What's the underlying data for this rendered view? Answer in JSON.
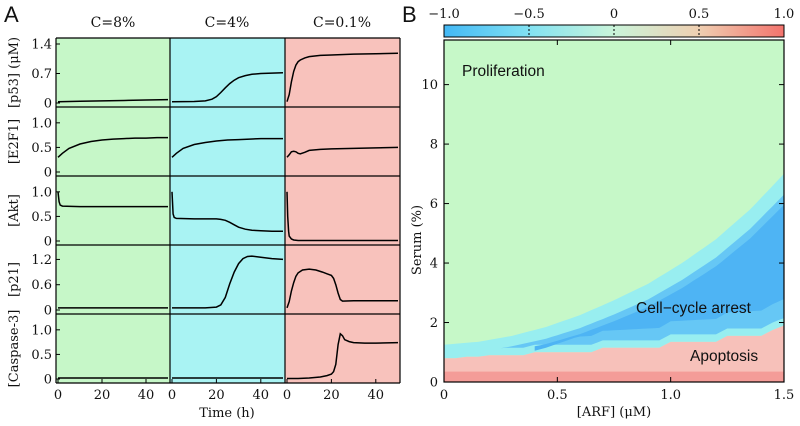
{
  "chart_data": [
    {
      "type": "line",
      "panel_label": "A",
      "column_titles": [
        "C=8%",
        "C=4%",
        "C=0.1%"
      ],
      "column_colors": [
        "#c6f7c8",
        "#a9f3f3",
        "#f8c2bc"
      ],
      "xlabel": "Time (h)",
      "xlim": [
        0,
        50
      ],
      "x_ticks": [
        "0",
        "20",
        "40"
      ],
      "x_tick_values": [
        0,
        20,
        40
      ],
      "rows": [
        {
          "ylabel": "[p53] (μM)",
          "ylim": [
            0,
            1.4
          ],
          "y_ticks": [
            "0",
            "0.7",
            "1.4"
          ],
          "y_tick_values": [
            0,
            0.7,
            1.4
          ],
          "series": [
            {
              "x": [
                0,
                5,
                10,
                20,
                30,
                40,
                50
              ],
              "y": [
                0.03,
                0.035,
                0.04,
                0.05,
                0.06,
                0.07,
                0.08
              ]
            },
            {
              "x": [
                0,
                10,
                15,
                18,
                20,
                22,
                24,
                26,
                28,
                30,
                33,
                36,
                40,
                45,
                50
              ],
              "y": [
                0.03,
                0.035,
                0.05,
                0.09,
                0.15,
                0.25,
                0.36,
                0.46,
                0.54,
                0.6,
                0.65,
                0.68,
                0.7,
                0.71,
                0.72
              ]
            },
            {
              "x": [
                0,
                1,
                2,
                3,
                4,
                5,
                6,
                8,
                10,
                15,
                20,
                30,
                40,
                50
              ],
              "y": [
                0.03,
                0.2,
                0.5,
                0.75,
                0.9,
                0.98,
                1.02,
                1.07,
                1.1,
                1.13,
                1.14,
                1.16,
                1.17,
                1.18
              ]
            }
          ]
        },
        {
          "ylabel": "[E2F1]",
          "ylim": [
            0,
            1.2
          ],
          "y_ticks": [
            "0",
            "0.5",
            "1.0"
          ],
          "y_tick_values": [
            0,
            0.5,
            1.0
          ],
          "series": [
            {
              "x": [
                0,
                2,
                5,
                10,
                15,
                20,
                25,
                30,
                35,
                40,
                45,
                50
              ],
              "y": [
                0.3,
                0.38,
                0.48,
                0.57,
                0.62,
                0.65,
                0.67,
                0.68,
                0.69,
                0.69,
                0.7,
                0.7
              ]
            },
            {
              "x": [
                0,
                2,
                5,
                10,
                15,
                20,
                25,
                30,
                35,
                40,
                45,
                50
              ],
              "y": [
                0.3,
                0.38,
                0.48,
                0.56,
                0.6,
                0.63,
                0.65,
                0.66,
                0.67,
                0.68,
                0.68,
                0.68
              ]
            },
            {
              "x": [
                0,
                1,
                2,
                3,
                4,
                5,
                6,
                8,
                10,
                15,
                20,
                30,
                40,
                50
              ],
              "y": [
                0.3,
                0.35,
                0.41,
                0.42,
                0.41,
                0.38,
                0.37,
                0.4,
                0.44,
                0.46,
                0.47,
                0.48,
                0.49,
                0.5
              ]
            }
          ]
        },
        {
          "ylabel": "[Akt]",
          "ylim": [
            0,
            1.2
          ],
          "y_ticks": [
            "0",
            "0.5",
            "1.0"
          ],
          "y_tick_values": [
            0,
            0.5,
            1.0
          ],
          "series": [
            {
              "x": [
                0,
                0.5,
                1,
                2,
                10,
                20,
                30,
                40,
                50
              ],
              "y": [
                1.0,
                0.8,
                0.73,
                0.71,
                0.7,
                0.7,
                0.7,
                0.7,
                0.7
              ]
            },
            {
              "x": [
                0,
                0.5,
                1,
                2,
                10,
                20,
                22,
                24,
                26,
                28,
                30,
                33,
                36,
                40,
                45,
                50
              ],
              "y": [
                1.0,
                0.55,
                0.48,
                0.46,
                0.45,
                0.45,
                0.44,
                0.42,
                0.38,
                0.33,
                0.28,
                0.24,
                0.22,
                0.21,
                0.2,
                0.2
              ]
            },
            {
              "x": [
                0,
                0.3,
                0.7,
                1,
                2,
                3,
                5,
                10,
                20,
                30,
                40,
                50
              ],
              "y": [
                1.0,
                0.5,
                0.2,
                0.1,
                0.04,
                0.02,
                0.01,
                0.01,
                0.01,
                0.01,
                0.01,
                0.01
              ]
            }
          ]
        },
        {
          "ylabel": "[p21]",
          "ylim": [
            0,
            1.4
          ],
          "y_ticks": [
            "0",
            "0.6",
            "1.2"
          ],
          "y_tick_values": [
            0,
            0.6,
            1.2
          ],
          "series": [
            {
              "x": [
                0,
                5,
                10,
                20,
                30,
                40,
                50
              ],
              "y": [
                0.05,
                0.05,
                0.05,
                0.05,
                0.05,
                0.05,
                0.05
              ]
            },
            {
              "x": [
                0,
                10,
                15,
                20,
                22,
                24,
                26,
                28,
                30,
                32,
                34,
                36,
                40,
                45,
                50
              ],
              "y": [
                0.05,
                0.05,
                0.05,
                0.07,
                0.12,
                0.3,
                0.62,
                0.9,
                1.1,
                1.22,
                1.27,
                1.28,
                1.25,
                1.22,
                1.2
              ]
            },
            {
              "x": [
                0,
                1,
                2,
                3,
                4,
                5,
                7,
                10,
                13,
                16,
                18,
                20,
                21,
                22,
                23,
                24,
                25,
                30,
                40,
                50
              ],
              "y": [
                0.05,
                0.2,
                0.45,
                0.65,
                0.8,
                0.88,
                0.95,
                0.97,
                0.95,
                0.9,
                0.86,
                0.82,
                0.75,
                0.6,
                0.4,
                0.25,
                0.21,
                0.22,
                0.22,
                0.22
              ]
            }
          ]
        },
        {
          "ylabel": "[Caspase-3]",
          "ylim": [
            0,
            1.2
          ],
          "y_ticks": [
            "0",
            "0.5",
            "1.0"
          ],
          "y_tick_values": [
            0,
            0.5,
            1.0
          ],
          "series": [
            {
              "x": [
                0,
                10,
                20,
                30,
                40,
                50
              ],
              "y": [
                0.02,
                0.02,
                0.02,
                0.02,
                0.02,
                0.02
              ]
            },
            {
              "x": [
                0,
                10,
                20,
                30,
                40,
                50
              ],
              "y": [
                0.02,
                0.02,
                0.02,
                0.02,
                0.02,
                0.02
              ]
            },
            {
              "x": [
                0,
                5,
                10,
                15,
                18,
                20,
                21,
                22,
                23,
                24,
                25,
                26,
                28,
                30,
                35,
                40,
                50
              ],
              "y": [
                0.01,
                0.01,
                0.02,
                0.04,
                0.07,
                0.1,
                0.15,
                0.3,
                0.7,
                0.92,
                0.88,
                0.8,
                0.76,
                0.74,
                0.73,
                0.73,
                0.74
              ]
            }
          ]
        }
      ]
    },
    {
      "type": "heatmap",
      "panel_label": "B",
      "xlabel": "[ARF] (μM)",
      "ylabel": "Serum (%)",
      "xlim": [
        0,
        1.5
      ],
      "ylim": [
        0,
        11.5
      ],
      "x_ticks": [
        "0",
        "0.5",
        "1.0",
        "1.5"
      ],
      "x_tick_values": [
        0,
        0.5,
        1.0,
        1.5
      ],
      "y_ticks": [
        "0",
        "2",
        "4",
        "6",
        "8",
        "10"
      ],
      "y_tick_values": [
        0,
        2,
        4,
        6,
        8,
        10
      ],
      "colorbar": {
        "ticks": [
          "−1.0",
          "−0.5",
          "0",
          "0.5",
          "1.0"
        ],
        "tick_values": [
          -1.0,
          -0.5,
          0,
          0.5,
          1.0
        ],
        "stops": [
          "#43b8f5",
          "#82e2f2",
          "#caf4da",
          "#efcfb1",
          "#f3736d"
        ]
      },
      "region_colors": {
        "proliferation": "#c6f8c8",
        "outer_boundary": "#98eef0",
        "arrest_mid": "#66c7f5",
        "arrest_core": "#4eb4f4",
        "apoptosis": "#f7c1ba",
        "apoptosis_floor": "#f49c98"
      },
      "regions": {
        "proliferation_label": "Proliferation",
        "arrest_label": "Cell−cycle arrest",
        "apoptosis_label": "Apoptosis",
        "arrest_upper_boundary": {
          "x": [
            0,
            0.15,
            0.3,
            0.45,
            0.6,
            0.75,
            0.9,
            1.05,
            1.2,
            1.35,
            1.5
          ],
          "y": [
            1.25,
            1.35,
            1.55,
            1.85,
            2.25,
            2.75,
            3.3,
            4.0,
            4.8,
            5.8,
            7.0
          ]
        },
        "apoptosis_upper_boundary": {
          "x": [
            0,
            0.05,
            0.1,
            0.15,
            0.2,
            0.35,
            0.4,
            0.65,
            0.7,
            0.95,
            1.0,
            1.2,
            1.25,
            1.4,
            1.45,
            1.5
          ],
          "y": [
            0.8,
            0.8,
            0.85,
            0.85,
            0.9,
            0.9,
            1.0,
            1.0,
            1.15,
            1.15,
            1.35,
            1.35,
            1.55,
            1.55,
            1.75,
            1.9
          ]
        }
      }
    }
  ]
}
